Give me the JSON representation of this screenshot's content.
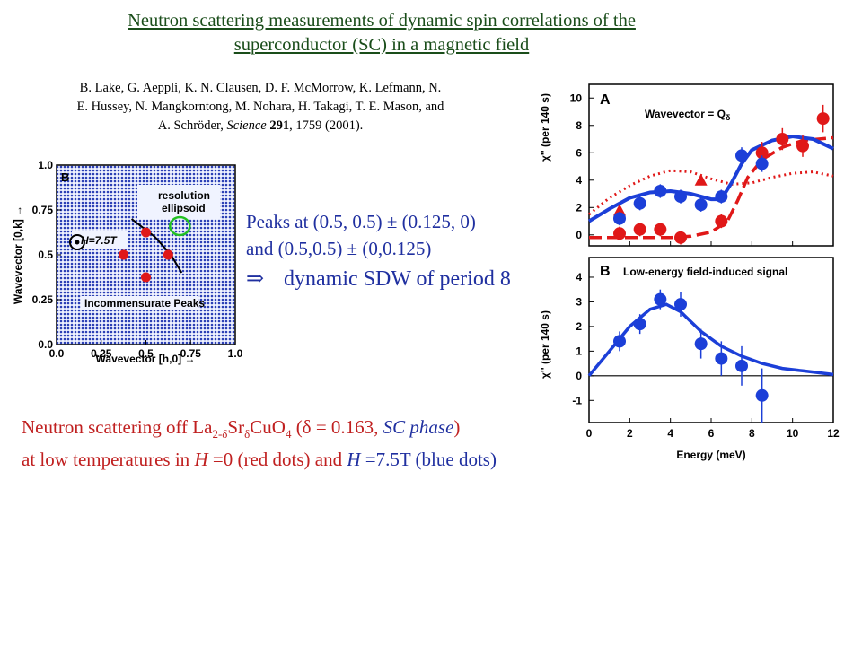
{
  "title": {
    "line1": " Neutron scattering measurements of dynamic spin correlations of the",
    "line2": "superconductor (SC) in a magnetic field"
  },
  "citation": {
    "authors_line1": "B. Lake, G. Aeppli, K. N. Clausen, D. F. McMorrow, K. Lefmann, N.",
    "authors_line2": "E. Hussey, N. Mangkorntong, M. Nohara, H. Takagi, T. E. Mason, and",
    "authors_line3_pre": "A. Schröder, ",
    "journal": "Science",
    "volume": "291",
    "pages_year": ", 1759 (2001)."
  },
  "peaks_text": {
    "line1": "Peaks at (0.5, 0.5) ± (0.125, 0)",
    "line2": "and (0.5,0.5) ± (0,0.125)",
    "arrow": "⇒",
    "line3": "dynamic SDW of period 8"
  },
  "bottom_text": {
    "line1_pre": "Neutron scattering off La",
    "sub1": "2-δ",
    "sr": "Sr",
    "sub2": "δ",
    "cuo": "CuO",
    "sub3": "4",
    "delta": " (δ = 0.163, ",
    "phase": "SC phase",
    "close": ")",
    "line2_pre": "at low temperatures in ",
    "h1": "H",
    "zero": " =0 (red dots) and ",
    "h2": "H",
    "field": " =7.5T (blue dots)"
  },
  "panelB_map": {
    "label": "B",
    "resolution_line1": "resolution",
    "resolution_line2": "ellipsoid",
    "h_label": "H=7.5T",
    "incommensurate": "Incommensurate Peaks",
    "xlabel": "Wavevector [h,0] →",
    "ylabel": "Wavevector [0,k] →",
    "xticks": [
      "0.0",
      "0.25",
      "0.5",
      "0.75",
      "1.0"
    ],
    "yticks": [
      "0.0",
      "0.25",
      "0.5",
      "0.75",
      "1.0"
    ],
    "red_peaks": [
      [
        0.375,
        0.5
      ],
      [
        0.5,
        0.375
      ],
      [
        0.5,
        0.625
      ],
      [
        0.625,
        0.5
      ]
    ],
    "black_circle": [
      0.05,
      0.57
    ],
    "green_ellipse": [
      0.69,
      0.66
    ],
    "curve": [
      [
        0.42,
        0.7
      ],
      [
        0.55,
        0.6
      ],
      [
        0.64,
        0.5
      ],
      [
        0.7,
        0.4
      ]
    ]
  },
  "chart_data": [
    {
      "type": "scatter",
      "panel": "A",
      "title": "Wavevector = Q",
      "title_sub": "δ",
      "xlabel": "",
      "ylabel": "χ'' (per 140 s)",
      "xlim": [
        0,
        12
      ],
      "ylim": [
        -0.8,
        11
      ],
      "yticks": [
        0,
        2,
        4,
        6,
        8,
        10
      ],
      "xticks": [
        0,
        2,
        4,
        6,
        8,
        10,
        12
      ],
      "blue_points": [
        [
          1.5,
          1.2
        ],
        [
          2.5,
          2.3
        ],
        [
          3.5,
          3.2
        ],
        [
          4.5,
          2.8
        ],
        [
          5.5,
          2.2
        ],
        [
          6.5,
          2.8
        ],
        [
          7.5,
          5.8
        ],
        [
          8.5,
          5.2
        ]
      ],
      "blue_errors": [
        0.5,
        0.5,
        0.5,
        0.5,
        0.5,
        0.5,
        0.6,
        0.6
      ],
      "red_points": [
        [
          1.5,
          0.1
        ],
        [
          2.5,
          0.4
        ],
        [
          3.5,
          0.4
        ],
        [
          4.5,
          -0.2
        ],
        [
          6.5,
          1.0
        ],
        [
          8.5,
          6.0
        ],
        [
          9.5,
          7.0
        ],
        [
          10.5,
          6.5
        ],
        [
          11.5,
          8.5
        ]
      ],
      "red_errors": [
        0.5,
        0.5,
        0.5,
        0.5,
        0.5,
        0.8,
        0.8,
        0.8,
        1.0
      ],
      "red_triangles": [
        [
          1.5,
          1.8
        ],
        [
          5.5,
          4.0
        ]
      ],
      "blue_curve": [
        [
          0,
          1.0
        ],
        [
          1,
          1.9
        ],
        [
          2,
          2.7
        ],
        [
          3,
          3.1
        ],
        [
          4,
          3.2
        ],
        [
          5,
          3.0
        ],
        [
          6,
          2.6
        ],
        [
          6.5,
          2.6
        ],
        [
          7,
          3.8
        ],
        [
          7.5,
          5.2
        ],
        [
          8,
          6.2
        ],
        [
          9,
          6.9
        ],
        [
          10,
          7.2
        ],
        [
          11,
          7.0
        ],
        [
          12,
          6.3
        ]
      ],
      "red_dashed_curve": [
        [
          0,
          -0.2
        ],
        [
          2,
          -0.2
        ],
        [
          4,
          -0.2
        ],
        [
          5,
          -0.1
        ],
        [
          6,
          0.2
        ],
        [
          6.8,
          1.0
        ],
        [
          7.3,
          2.5
        ],
        [
          7.8,
          4.2
        ],
        [
          8.5,
          5.5
        ],
        [
          9.5,
          6.4
        ],
        [
          10.5,
          6.9
        ],
        [
          12,
          7.1
        ]
      ],
      "red_dotted_curve": [
        [
          0,
          1.5
        ],
        [
          1,
          2.7
        ],
        [
          2,
          3.6
        ],
        [
          3,
          4.3
        ],
        [
          4,
          4.7
        ],
        [
          5,
          4.6
        ],
        [
          6,
          4.1
        ],
        [
          7,
          3.7
        ],
        [
          8,
          3.8
        ],
        [
          9,
          4.2
        ],
        [
          10,
          4.5
        ],
        [
          11,
          4.6
        ],
        [
          12,
          4.3
        ]
      ]
    },
    {
      "type": "scatter",
      "panel": "B",
      "title": "Low-energy field-induced signal",
      "xlabel": "Energy (meV)",
      "ylabel": "χ'' (per 140 s)",
      "xlim": [
        0,
        12
      ],
      "ylim": [
        -1.9,
        4.8
      ],
      "yticks": [
        -1,
        0,
        1,
        2,
        3,
        4
      ],
      "xticks": [
        0,
        2,
        4,
        6,
        8,
        10,
        12
      ],
      "points": [
        [
          1.5,
          1.4
        ],
        [
          2.5,
          2.1
        ],
        [
          3.5,
          3.1
        ],
        [
          4.5,
          2.9
        ],
        [
          5.5,
          1.3
        ],
        [
          6.5,
          0.7
        ],
        [
          7.5,
          0.4
        ],
        [
          8.5,
          -0.8
        ]
      ],
      "errors": [
        0.4,
        0.4,
        0.4,
        0.5,
        0.6,
        0.7,
        0.8,
        1.1
      ],
      "curve": [
        [
          0,
          0
        ],
        [
          1,
          1.0
        ],
        [
          2,
          2.0
        ],
        [
          3,
          2.7
        ],
        [
          3.8,
          2.9
        ],
        [
          4.5,
          2.6
        ],
        [
          5.5,
          1.8
        ],
        [
          6.5,
          1.2
        ],
        [
          7.5,
          0.8
        ],
        [
          8.5,
          0.5
        ],
        [
          9.5,
          0.3
        ],
        [
          10.5,
          0.2
        ],
        [
          12,
          0.05
        ]
      ]
    }
  ]
}
